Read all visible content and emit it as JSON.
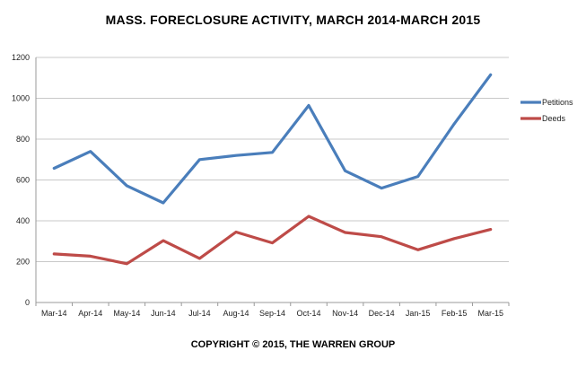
{
  "title": "MASS. FORECLOSURE ACTIVITY, MARCH 2014-MARCH 2015",
  "copyright": "COPYRIGHT © 2015, THE WARREN GROUP",
  "chart_data": {
    "type": "line",
    "title": "MASS. FORECLOSURE ACTIVITY, MARCH 2014-MARCH 2015",
    "categories": [
      "Mar-14",
      "Apr-14",
      "May-14",
      "Jun-14",
      "Jul-14",
      "Aug-14",
      "Sep-14",
      "Oct-14",
      "Nov-14",
      "Dec-14",
      "Jan-15",
      "Feb-15",
      "Mar-15"
    ],
    "ylim": [
      0,
      1200
    ],
    "yticks": [
      0,
      200,
      400,
      600,
      800,
      1000,
      1200
    ],
    "grid": true,
    "legend_position": "right",
    "series": [
      {
        "name": "Petitions",
        "color": "#4a7ebb",
        "values": [
          657,
          740,
          572,
          488,
          700,
          720,
          735,
          965,
          645,
          560,
          617,
          875,
          1115
        ]
      },
      {
        "name": "Deeds",
        "color": "#be4b48",
        "values": [
          238,
          227,
          190,
          303,
          216,
          345,
          292,
          422,
          343,
          322,
          258,
          313,
          358
        ]
      }
    ]
  }
}
